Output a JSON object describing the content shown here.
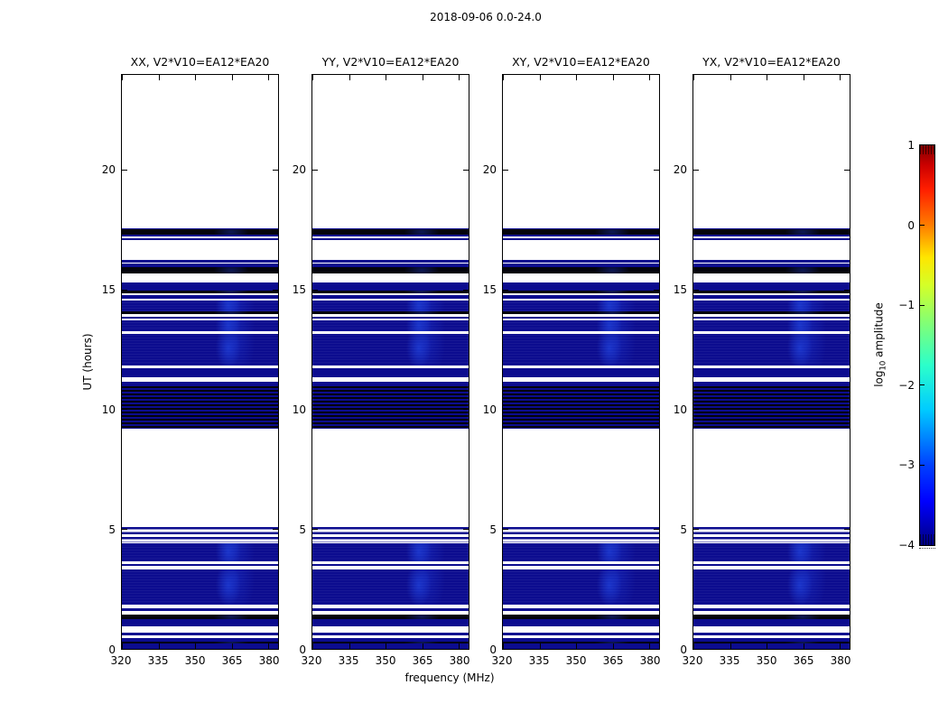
{
  "figure": {
    "title": "2018-09-06 0.0-24.0",
    "xlabel": "frequency (MHz)",
    "ylabel": "UT (hours)",
    "colorbar_label": {
      "pre": "log",
      "sub": "10",
      "post": " amplitude"
    }
  },
  "chart_data": {
    "type": "heatmap",
    "title": "2018-09-06 0.0-24.0",
    "xlabel": "frequency (MHz)",
    "ylabel": "UT (hours)",
    "xlim": [
      320,
      384
    ],
    "ylim": [
      0,
      24
    ],
    "xticks": [
      320,
      335,
      350,
      365,
      380
    ],
    "yticks": [
      0,
      5,
      10,
      15,
      20
    ],
    "grid": false,
    "panels": [
      {
        "pol": "XX",
        "title": "XX, V2*V10=EA12*EA20"
      },
      {
        "pol": "YY",
        "title": "YY, V2*V10=EA12*EA20"
      },
      {
        "pol": "XY",
        "title": "XY, V2*V10=EA12*EA20"
      },
      {
        "pol": "YX",
        "title": "YX, V2*V10=EA12*EA20"
      }
    ],
    "colorbar": {
      "label": "log10 amplitude",
      "ticks": [
        1,
        0,
        -1,
        -2,
        -3,
        -4
      ],
      "range": [
        -4,
        1
      ],
      "colormap": "jet",
      "orientation": "vertical"
    },
    "levels": {
      "b": "faint blue emission (log10 amp near -4)",
      "k": "near-black band (lowest amplitude)",
      "d": "dark block of alternating black/blue scan lines",
      "s": "leading striped block of thin blue lines on white"
    },
    "time_bands_note": "UT-hour bands common to all four polarization panels; gaps are white (no data)",
    "time_bands": [
      [
        0.0,
        0.23,
        "b"
      ],
      [
        0.23,
        0.3,
        "k"
      ],
      [
        0.3,
        0.45,
        "b"
      ],
      [
        0.56,
        0.68,
        "b"
      ],
      [
        0.94,
        1.24,
        "b"
      ],
      [
        1.24,
        1.43,
        "k"
      ],
      [
        1.58,
        1.69,
        "b"
      ],
      [
        1.84,
        3.31,
        "b"
      ],
      [
        3.46,
        3.54,
        "b"
      ],
      [
        3.65,
        4.4,
        "b"
      ],
      [
        4.44,
        5.08,
        "s"
      ],
      [
        9.22,
        10.98,
        "d"
      ],
      [
        10.98,
        11.17,
        "b"
      ],
      [
        11.36,
        11.74,
        "b"
      ],
      [
        11.85,
        13.17,
        "b"
      ],
      [
        13.28,
        13.73,
        "b"
      ],
      [
        13.8,
        13.88,
        "b"
      ],
      [
        14.01,
        14.11,
        "k"
      ],
      [
        14.11,
        14.56,
        "b"
      ],
      [
        14.63,
        14.78,
        "b"
      ],
      [
        14.86,
        14.97,
        "k"
      ],
      [
        14.97,
        15.31,
        "b"
      ],
      [
        15.69,
        15.95,
        "k"
      ],
      [
        15.95,
        16.1,
        "b"
      ],
      [
        16.14,
        16.25,
        "b"
      ],
      [
        17.1,
        17.17,
        "b"
      ],
      [
        17.23,
        17.31,
        "b"
      ],
      [
        17.34,
        17.53,
        "k"
      ],
      [
        17.53,
        17.6,
        "b"
      ]
    ],
    "colors": {
      "blue": "#0c0c8f",
      "black": "#04040c",
      "speckle_accent": "#1e3cdc",
      "background": "#ffffff",
      "colorbar_top": "#800000",
      "colorbar_bottom": "#000080"
    }
  }
}
